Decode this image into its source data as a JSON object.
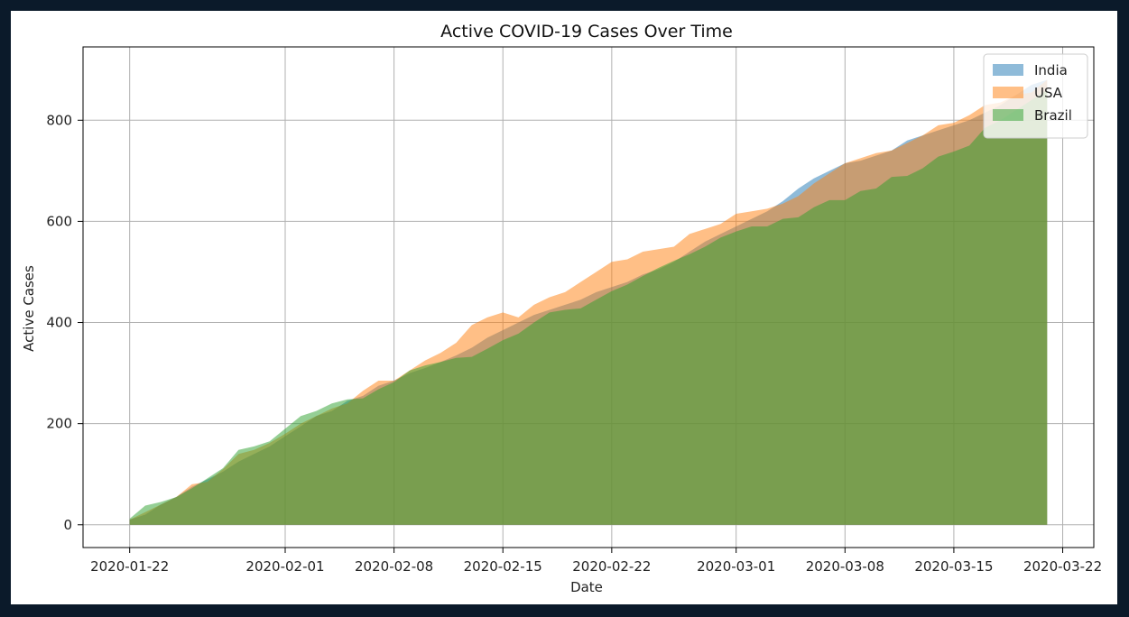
{
  "chart_data": {
    "type": "area",
    "title": "Active COVID-19 Cases Over Time",
    "xlabel": "Date",
    "ylabel": "Active Cases",
    "xlim": [
      "2020-01-19",
      "2020-03-24"
    ],
    "ylim": [
      -45,
      945
    ],
    "x_ticks": [
      "2020-01-22",
      "2020-02-01",
      "2020-02-08",
      "2020-02-15",
      "2020-02-22",
      "2020-03-01",
      "2020-03-08",
      "2020-03-15",
      "2020-03-22"
    ],
    "y_ticks": [
      0,
      200,
      400,
      600,
      800
    ],
    "grid": true,
    "legend": "top-right",
    "stacked": false,
    "alpha": 0.5,
    "x": [
      "2020-01-22",
      "2020-01-23",
      "2020-01-24",
      "2020-01-25",
      "2020-01-26",
      "2020-01-27",
      "2020-01-28",
      "2020-01-29",
      "2020-01-30",
      "2020-01-31",
      "2020-02-01",
      "2020-02-02",
      "2020-02-03",
      "2020-02-04",
      "2020-02-05",
      "2020-02-06",
      "2020-02-07",
      "2020-02-08",
      "2020-02-09",
      "2020-02-10",
      "2020-02-11",
      "2020-02-12",
      "2020-02-13",
      "2020-02-14",
      "2020-02-15",
      "2020-02-16",
      "2020-02-17",
      "2020-02-18",
      "2020-02-19",
      "2020-02-20",
      "2020-02-21",
      "2020-02-22",
      "2020-02-23",
      "2020-02-24",
      "2020-02-25",
      "2020-02-26",
      "2020-02-27",
      "2020-02-28",
      "2020-02-29",
      "2020-03-01",
      "2020-03-02",
      "2020-03-03",
      "2020-03-04",
      "2020-03-05",
      "2020-03-06",
      "2020-03-07",
      "2020-03-08",
      "2020-03-09",
      "2020-03-10",
      "2020-03-11",
      "2020-03-12",
      "2020-03-13",
      "2020-03-14",
      "2020-03-15",
      "2020-03-16",
      "2020-03-17",
      "2020-03-18",
      "2020-03-19",
      "2020-03-20",
      "2020-03-21"
    ],
    "series": [
      {
        "name": "India",
        "color": "#1f77b4",
        "values": [
          10,
          20,
          40,
          55,
          75,
          90,
          105,
          125,
          140,
          155,
          175,
          195,
          215,
          225,
          245,
          255,
          275,
          285,
          300,
          310,
          322,
          335,
          350,
          370,
          385,
          400,
          415,
          425,
          435,
          445,
          460,
          470,
          480,
          495,
          505,
          520,
          540,
          560,
          575,
          590,
          605,
          620,
          640,
          665,
          685,
          700,
          715,
          720,
          730,
          740,
          760,
          770,
          780,
          790,
          800,
          815,
          830,
          850,
          870,
          880
        ]
      },
      {
        "name": "USA",
        "color": "#ff7f0e",
        "values": [
          10,
          25,
          40,
          55,
          80,
          85,
          110,
          140,
          148,
          162,
          180,
          200,
          215,
          230,
          240,
          265,
          285,
          285,
          305,
          325,
          340,
          360,
          395,
          410,
          420,
          410,
          435,
          450,
          460,
          480,
          500,
          520,
          525,
          540,
          545,
          550,
          575,
          585,
          595,
          615,
          620,
          625,
          635,
          650,
          675,
          695,
          715,
          725,
          735,
          740,
          755,
          770,
          790,
          795,
          810,
          830,
          835,
          850,
          855,
          880
        ]
      },
      {
        "name": "Brazil",
        "color": "#2ca02c",
        "values": [
          12,
          38,
          45,
          55,
          72,
          92,
          112,
          148,
          155,
          165,
          190,
          215,
          225,
          240,
          248,
          250,
          268,
          282,
          305,
          315,
          322,
          330,
          332,
          348,
          365,
          378,
          400,
          420,
          425,
          428,
          445,
          462,
          475,
          492,
          508,
          522,
          535,
          550,
          568,
          580,
          590,
          590,
          605,
          608,
          628,
          642,
          642,
          660,
          665,
          688,
          690,
          705,
          728,
          738,
          750,
          785,
          800,
          820,
          840,
          860
        ]
      }
    ]
  }
}
